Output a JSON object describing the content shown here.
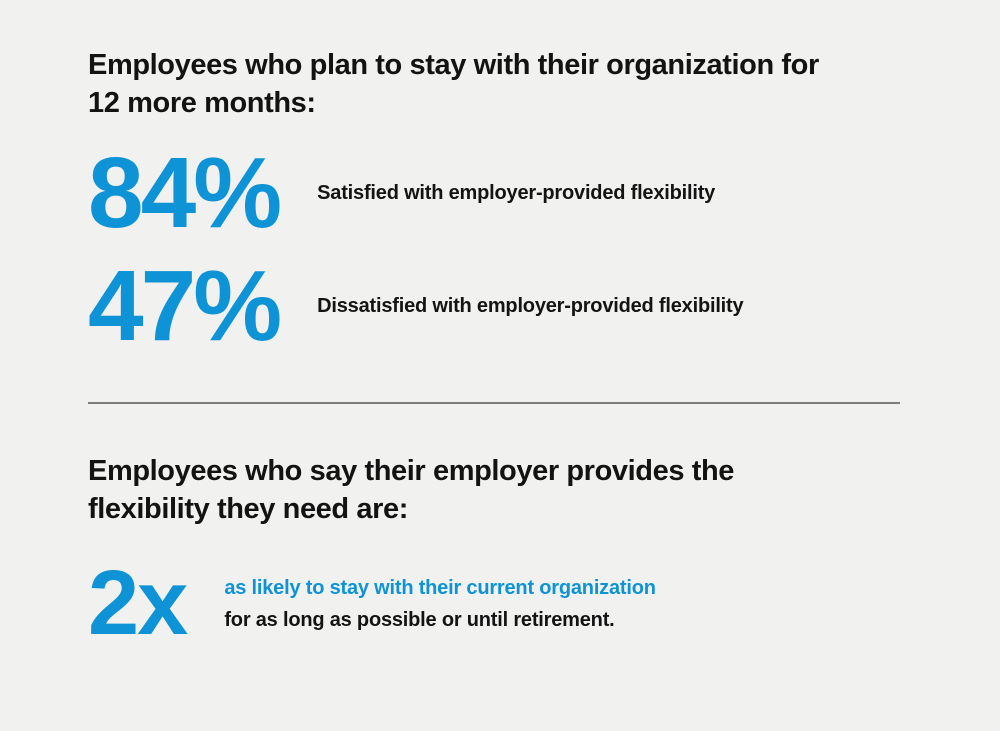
{
  "page": {
    "background_color": "#f1f1ef",
    "accent_blue": "#0e93d6",
    "text_color": "#141414",
    "divider_color": "#7d7d7d"
  },
  "section_retention": {
    "heading_line1": "Employees who plan to stay with their organization for",
    "heading_line2": "12 more months:",
    "stats": [
      {
        "value": "84%",
        "label": "Satisfied with employer-provided flexibility"
      },
      {
        "value": "47%",
        "label": "Dissatisfied with employer-provided flexibility"
      }
    ]
  },
  "section_flexibility": {
    "heading_line1": "Employees who say their employer provides the",
    "heading_line2": "flexibility they need are:",
    "stat": {
      "value": "2x",
      "label_highlight": "as likely to stay with their current organization",
      "label_rest": "for as long as possible or until retirement."
    }
  },
  "chart_data": [
    {
      "type": "table",
      "title": "Employees who plan to stay with their organization for 12 more months:",
      "categories": [
        "Satisfied with employer-provided flexibility",
        "Dissatisfied with employer-provided flexibility"
      ],
      "values": [
        84,
        47
      ],
      "unit": "%"
    },
    {
      "type": "table",
      "title": "Employees who say their employer provides the flexibility they need are:",
      "categories": [
        "as likely to stay with their current organization for as long as possible or until retirement."
      ],
      "values": [
        2
      ],
      "unit": "x"
    }
  ]
}
